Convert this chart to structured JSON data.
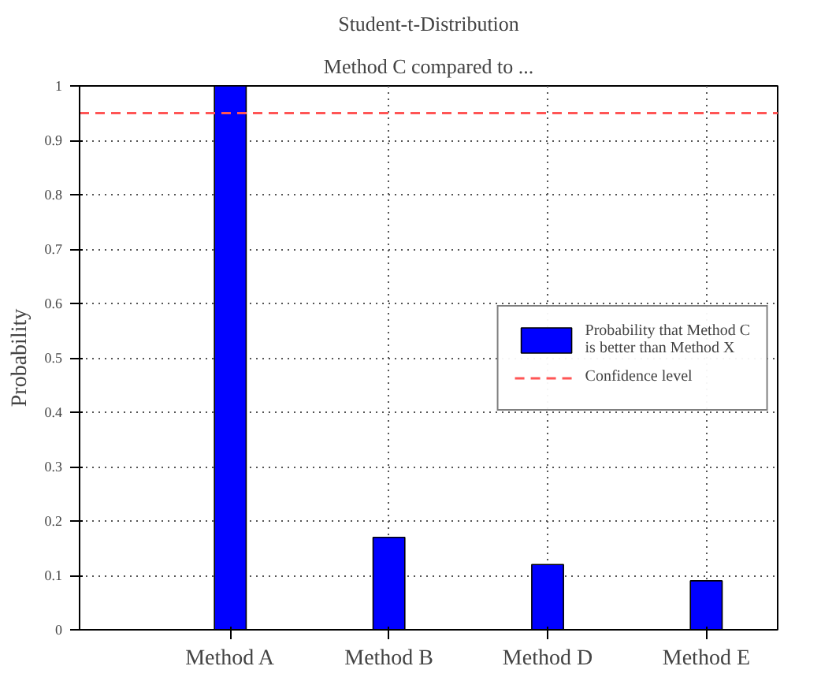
{
  "chart_data": {
    "type": "bar",
    "title": "Student-t-Distribution",
    "subtitle": "Method C compared to ...",
    "ylabel": "Probability",
    "categories": [
      "Method A",
      "Method B",
      "Method D",
      "Method E"
    ],
    "series": [
      {
        "name": "Probability that Method C is better than Method X",
        "color": "#0000ff",
        "values": [
          1.0,
          0.17,
          0.12,
          0.09
        ]
      }
    ],
    "ylim": [
      0,
      1
    ],
    "yticks": [
      0,
      0.1,
      0.2,
      0.3,
      0.4,
      0.5,
      0.6,
      0.7,
      0.8,
      0.9,
      1
    ],
    "ref_lines": [
      {
        "axis": "y",
        "value": 0.95,
        "label": "Confidence level",
        "color": "#ff5555",
        "line_style": "dashed"
      }
    ],
    "grid": true,
    "legend": "right"
  }
}
